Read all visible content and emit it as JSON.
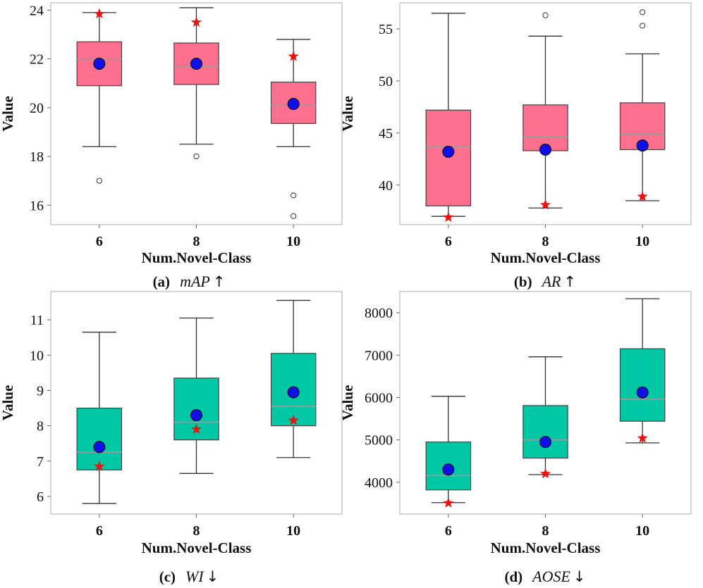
{
  "chart_data": [
    {
      "id": "a",
      "type": "box",
      "caption_tag": "(a)",
      "caption_metric": "mAP",
      "caption_arrow": "↑",
      "xlabel": "Num.Novel-Class",
      "ylabel": "Value",
      "categories": [
        "6",
        "8",
        "10"
      ],
      "ylim": [
        15.2,
        24.3
      ],
      "yticks": [
        16,
        18,
        20,
        22,
        24
      ],
      "box_color": "#FF6F8E",
      "boxes": [
        {
          "whisker_low": 18.4,
          "q1": 20.9,
          "median": 22.0,
          "q3": 22.7,
          "whisker_high": 23.9,
          "mean": 21.8,
          "star": 23.85,
          "outliers": [
            17.0
          ]
        },
        {
          "whisker_low": 18.5,
          "q1": 20.95,
          "median": 21.7,
          "q3": 22.65,
          "whisker_high": 24.1,
          "mean": 21.8,
          "star": 23.5,
          "outliers": [
            18.0
          ]
        },
        {
          "whisker_low": 18.4,
          "q1": 19.35,
          "median": 20.1,
          "q3": 21.05,
          "whisker_high": 22.8,
          "mean": 20.15,
          "star": 22.1,
          "outliers": [
            16.4,
            15.55
          ]
        }
      ]
    },
    {
      "id": "b",
      "type": "box",
      "caption_tag": "(b)",
      "caption_metric": "AR",
      "caption_arrow": "↑",
      "xlabel": "Num.Novel-Class",
      "ylabel": "Value",
      "categories": [
        "6",
        "8",
        "10"
      ],
      "ylim": [
        36.2,
        57.5
      ],
      "yticks": [
        40,
        45,
        50,
        55
      ],
      "box_color": "#FF6F8E",
      "boxes": [
        {
          "whisker_low": 37.0,
          "q1": 38.0,
          "median": 43.7,
          "q3": 47.2,
          "whisker_high": 56.5,
          "mean": 43.2,
          "star": 36.9,
          "outliers": []
        },
        {
          "whisker_low": 37.8,
          "q1": 43.3,
          "median": 44.6,
          "q3": 47.7,
          "whisker_high": 54.3,
          "mean": 43.4,
          "star": 38.1,
          "outliers": [
            56.3
          ]
        },
        {
          "whisker_low": 38.5,
          "q1": 43.4,
          "median": 44.9,
          "q3": 47.9,
          "whisker_high": 52.6,
          "mean": 43.8,
          "star": 38.9,
          "outliers": [
            55.3,
            56.6
          ]
        }
      ]
    },
    {
      "id": "c",
      "type": "box",
      "caption_tag": "(c)",
      "caption_metric": "WI",
      "caption_arrow": "↓",
      "xlabel": "Num.Novel-Class",
      "ylabel": "Value",
      "categories": [
        "6",
        "8",
        "10"
      ],
      "ylim": [
        5.5,
        11.8
      ],
      "yticks": [
        6,
        7,
        8,
        9,
        10,
        11
      ],
      "box_color": "#00C7A4",
      "boxes": [
        {
          "whisker_low": 5.8,
          "q1": 6.75,
          "median": 7.25,
          "q3": 8.5,
          "whisker_high": 10.65,
          "mean": 7.4,
          "star": 6.85,
          "outliers": []
        },
        {
          "whisker_low": 6.65,
          "q1": 7.6,
          "median": 8.1,
          "q3": 9.35,
          "whisker_high": 11.05,
          "mean": 8.3,
          "star": 7.9,
          "outliers": []
        },
        {
          "whisker_low": 7.1,
          "q1": 8.0,
          "median": 8.55,
          "q3": 10.05,
          "whisker_high": 11.55,
          "mean": 8.95,
          "star": 8.15,
          "outliers": []
        }
      ]
    },
    {
      "id": "d",
      "type": "box",
      "caption_tag": "(d)",
      "caption_metric": "AOSE",
      "caption_arrow": "↓",
      "xlabel": "Num.Novel-Class",
      "ylabel": "Value",
      "categories": [
        "6",
        "8",
        "10"
      ],
      "ylim": [
        3250,
        8500
      ],
      "yticks": [
        4000,
        5000,
        6000,
        7000,
        8000
      ],
      "box_color": "#00C7A4",
      "boxes": [
        {
          "whisker_low": 3520,
          "q1": 3820,
          "median": 4160,
          "q3": 4950,
          "whisker_high": 6030,
          "mean": 4300,
          "star": 3510,
          "outliers": []
        },
        {
          "whisker_low": 4180,
          "q1": 4570,
          "median": 5000,
          "q3": 5810,
          "whisker_high": 6960,
          "mean": 4950,
          "star": 4200,
          "outliers": []
        },
        {
          "whisker_low": 4930,
          "q1": 5440,
          "median": 5960,
          "q3": 7150,
          "whisker_high": 8330,
          "mean": 6120,
          "star": 5040,
          "outliers": []
        }
      ]
    }
  ],
  "colors": {
    "mean_marker": "#1010E6",
    "star_marker": "#EE1111",
    "median_line": "#9A9A9A",
    "whisker": "#333333",
    "frame": "#BBBBBB"
  }
}
